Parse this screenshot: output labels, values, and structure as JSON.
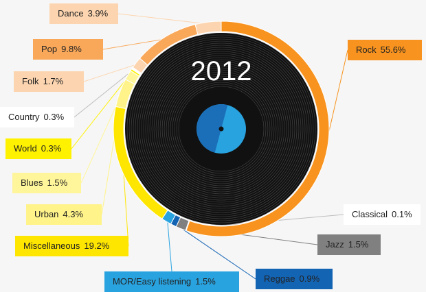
{
  "chart_data": {
    "type": "pie",
    "title": "2012",
    "slices": [
      {
        "label": "Rock",
        "value": 55.6,
        "color": "#f7931e"
      },
      {
        "label": "Classical",
        "value": 0.1,
        "color": "#ffffff"
      },
      {
        "label": "Jazz",
        "value": 1.5,
        "color": "#808080"
      },
      {
        "label": "Reggae",
        "value": 0.9,
        "color": "#1464b4"
      },
      {
        "label": "MOR/Easy listening",
        "value": 1.5,
        "color": "#29a3e0"
      },
      {
        "label": "Miscellaneous",
        "value": 19.2,
        "color": "#ffe600"
      },
      {
        "label": "Urban",
        "value": 4.3,
        "color": "#fff38a"
      },
      {
        "label": "Blues",
        "value": 1.5,
        "color": "#fff59a"
      },
      {
        "label": "World",
        "value": 0.3,
        "color": "#fff200"
      },
      {
        "label": "Country",
        "value": 0.3,
        "color": "#ffffff"
      },
      {
        "label": "Folk",
        "value": 1.7,
        "color": "#fcd5b0"
      },
      {
        "label": "Pop",
        "value": 9.8,
        "color": "#f9a85a"
      },
      {
        "label": "Dance",
        "value": 3.9,
        "color": "#fcd5b0"
      }
    ],
    "value_suffix": "%",
    "legend": "callout labels around the ring"
  }
}
